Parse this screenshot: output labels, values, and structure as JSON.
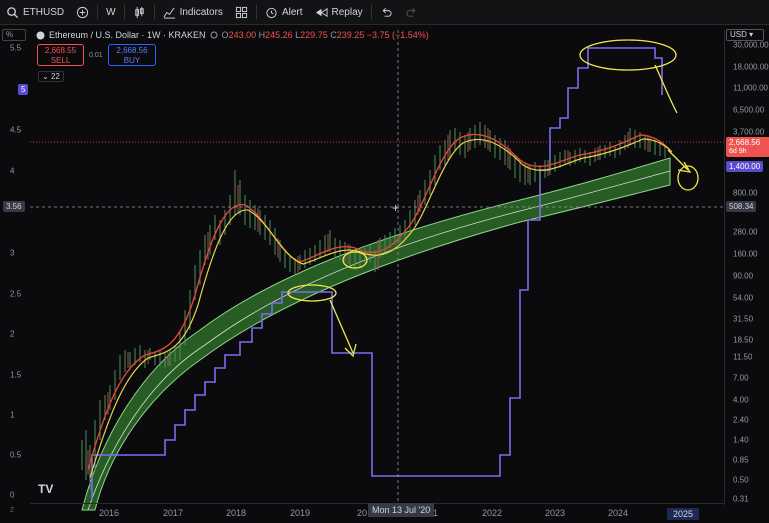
{
  "toolbar": {
    "symbol": "ETHUSD",
    "interval": "W",
    "indicators_label": "Indicators",
    "alert_label": "Alert",
    "replay_label": "Replay"
  },
  "legend": {
    "title": "Ethereum / U.S. Dollar · 1W · KRAKEN",
    "open_label": "O",
    "open": "243.00",
    "high_label": "H",
    "high": "245.26",
    "low_label": "L",
    "low": "229.75",
    "close_label": "C",
    "close": "239.25",
    "change": "−3.75 (−1.54%)"
  },
  "trade": {
    "sell_price": "2,668.55",
    "sell_label": "SELL",
    "spread": "0.01",
    "buy_price": "2,668.56",
    "buy_label": "BUY"
  },
  "indicator_count": "22",
  "currency": "USD",
  "pct_button": "%",
  "left_scale": [
    "5.5",
    "5",
    "4.5",
    "4",
    "3.56",
    "3",
    "2.5",
    "2",
    "1.5",
    "1",
    "0.5",
    "0"
  ],
  "right_scale": [
    "30,000.00",
    "18,000.00",
    "11,000.00",
    "6,500.00",
    "3,700.00",
    "1,400.00",
    "800.00",
    "508.34",
    "280.00",
    "160.00",
    "90.00",
    "54.00",
    "31.50",
    "18.50",
    "11.50",
    "7.00",
    "4.00",
    "2.40",
    "1.40",
    "0.85",
    "0.50",
    "0.31"
  ],
  "price_tag": {
    "price": "2,668.56",
    "countdown": "6d 9h"
  },
  "blue_tag": "1,400.00",
  "crosshair_price": "508.34",
  "crosshair_left": "3.56",
  "left_badge": "5",
  "time_axis": [
    "2016",
    "2017",
    "2018",
    "2019",
    "20",
    "21",
    "2022",
    "2023",
    "2024",
    "2025"
  ],
  "crosshair_date": "Mon 13 Jul '20",
  "scale_mode": "Z",
  "logo": "TV",
  "colors": {
    "band_fill": "#2e6b2a",
    "band_edge": "#8fd48a",
    "price_line": "#7c6cf0",
    "ma_red": "#e0453a",
    "ma_yellow": "#e8d34a",
    "annotation": "#f2e84a",
    "sell": "#ef5350",
    "buy": "#2962ff"
  }
}
